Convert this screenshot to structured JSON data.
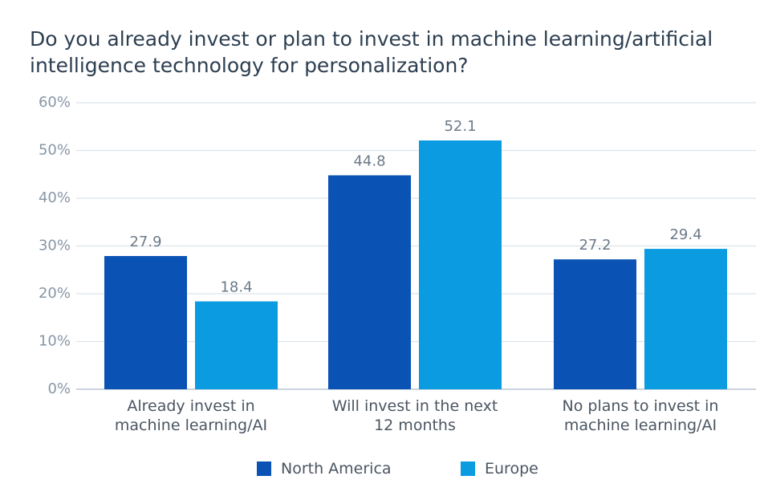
{
  "chart_data": {
    "type": "bar",
    "title_lines": [
      "Do you already invest or plan to invest in machine learning/artificial",
      "intelligence technology for personalization?"
    ],
    "categories": [
      [
        "Already invest in",
        "machine learning/AI"
      ],
      [
        "Will invest in the next",
        "12 months"
      ],
      [
        "No plans to invest in",
        "machine learning/AI"
      ]
    ],
    "series": [
      {
        "name": "North America",
        "color": "#0a52b4",
        "values": [
          27.9,
          44.8,
          27.2
        ],
        "labels": [
          "27.9",
          "44.8",
          "27.2"
        ]
      },
      {
        "name": "Europe",
        "color": "#0a9be0",
        "values": [
          18.4,
          52.1,
          29.4
        ],
        "labels": [
          "18.4",
          "52.1",
          "29.4"
        ]
      }
    ],
    "yticks": [
      0,
      10,
      20,
      30,
      40,
      50,
      60
    ],
    "ytick_labels": [
      "0%",
      "10%",
      "20%",
      "30%",
      "40%",
      "50%",
      "60%"
    ],
    "ylim": [
      0,
      60
    ],
    "grid": true,
    "legend_position": "bottom"
  }
}
